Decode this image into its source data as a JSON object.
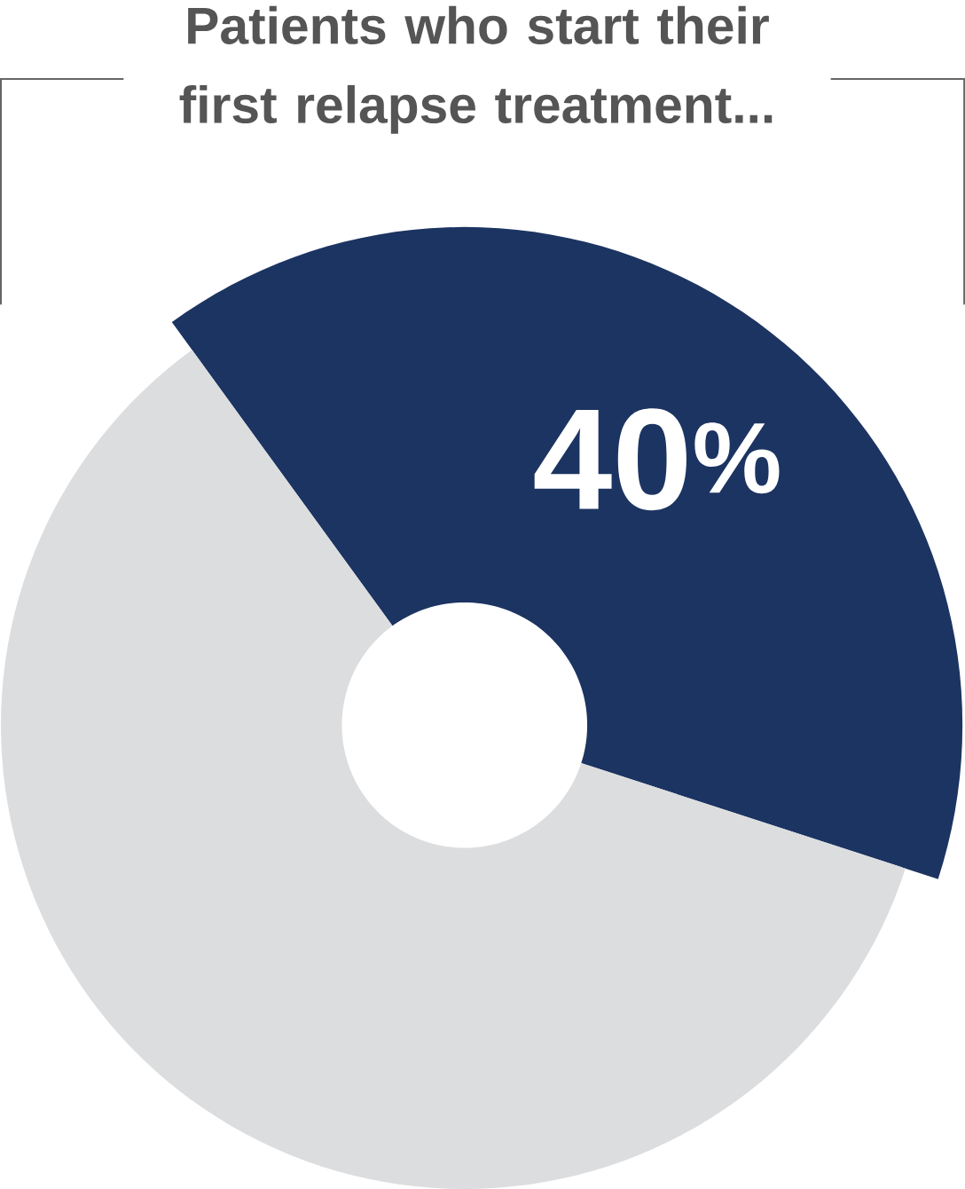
{
  "chart_data": {
    "type": "donut",
    "title": "Patients who start their first relapse treatment...",
    "categories": [
      null,
      null
    ],
    "values": [
      40,
      60
    ],
    "colors": [
      "#1c3461",
      "#dcdddf"
    ],
    "value_labels": [
      "40$^{%}$",
      null
    ]
  }
}
